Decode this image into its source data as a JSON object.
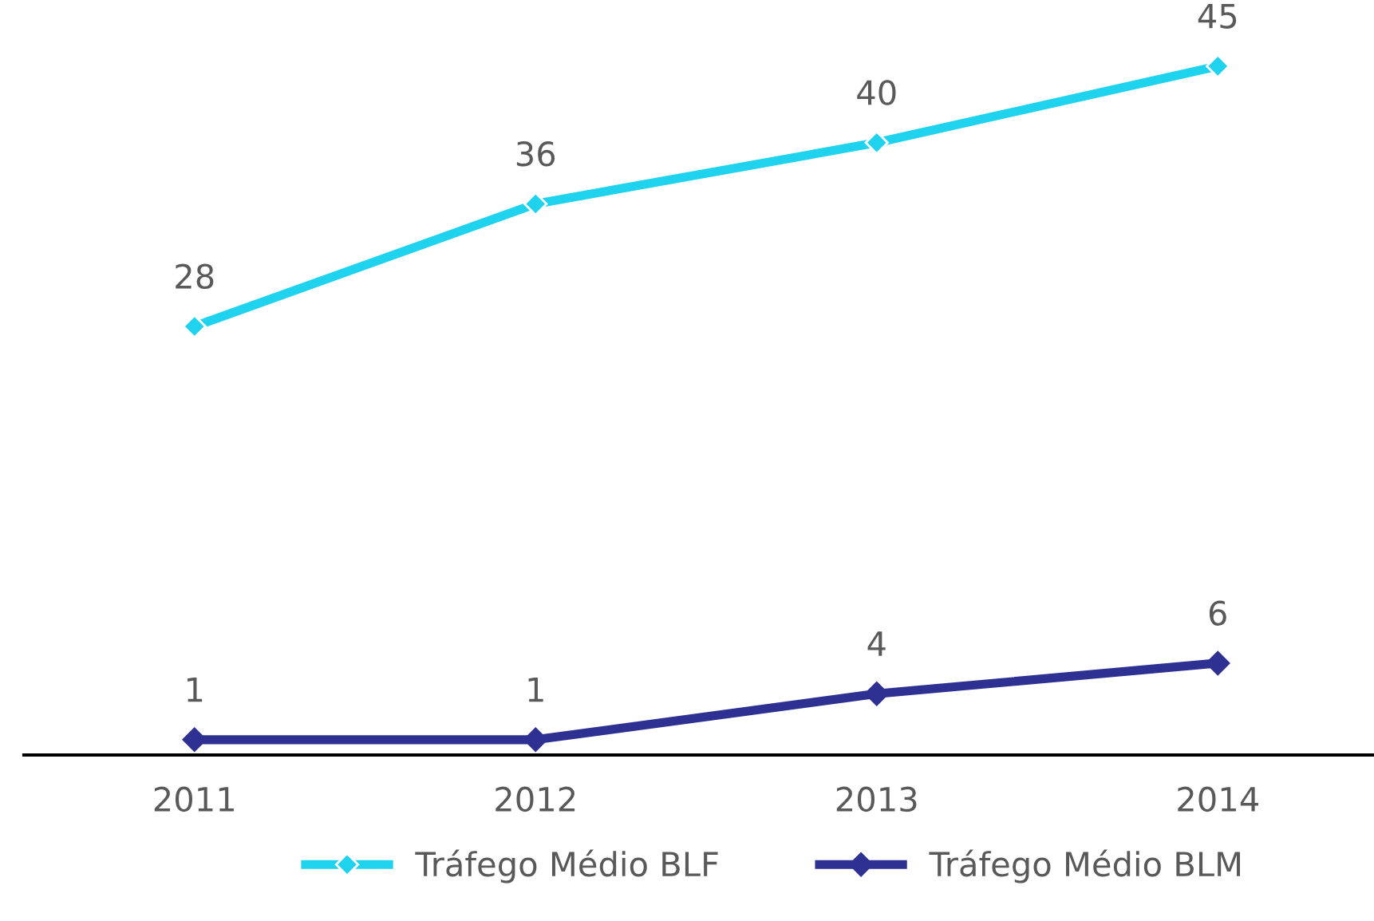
{
  "chart_data": {
    "type": "line",
    "categories": [
      "2011",
      "2012",
      "2013",
      "2014"
    ],
    "series": [
      {
        "name": "Tráfego Médio BLF",
        "color": "#1fd3ef",
        "values": [
          28,
          36,
          40,
          45
        ]
      },
      {
        "name": "Tráfego Médio BLM",
        "color": "#2e3192",
        "values": [
          1,
          1,
          4,
          6
        ]
      }
    ],
    "tick_labels": "x",
    "data_labels": true,
    "marker": "diamond",
    "line_style": "solid",
    "legend": "bottom",
    "grid": false
  }
}
